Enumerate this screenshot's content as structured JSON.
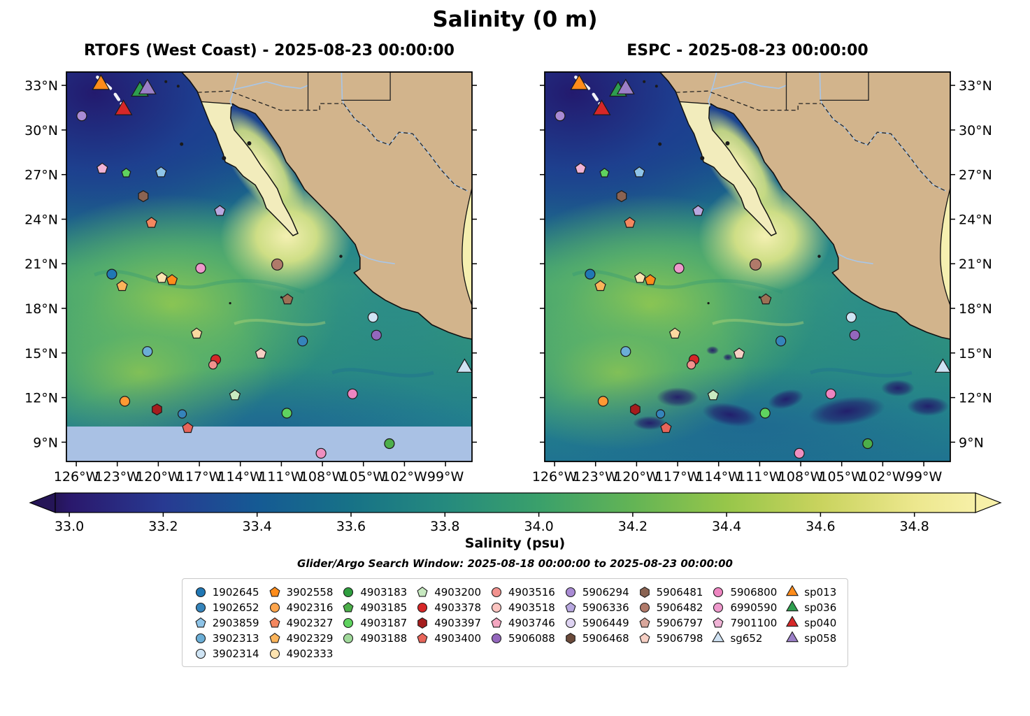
{
  "title": "Salinity (0 m)",
  "panels": [
    {
      "title": "RTOFS (West Coast) - 2025-08-23 00:00:00"
    },
    {
      "title": "ESPC - 2025-08-23 00:00:00"
    }
  ],
  "axes": {
    "lat_tick_labels": [
      "33°N",
      "30°N",
      "27°N",
      "24°N",
      "21°N",
      "18°N",
      "15°N",
      "12°N",
      "9°N"
    ],
    "lat_tick_values": [
      33,
      30,
      27,
      24,
      21,
      18,
      15,
      12,
      9
    ],
    "lon_tick_labels": [
      "126°W",
      "123°W",
      "120°W",
      "117°W",
      "114°W",
      "111°W",
      "108°W",
      "105°W",
      "102°W",
      "99°W"
    ],
    "lon_tick_values": [
      -126,
      -123,
      -120,
      -117,
      -114,
      -111,
      -108,
      -105,
      -102,
      -99
    ],
    "lon_range": [
      -126.72,
      -97.06
    ],
    "lat_range": [
      7.7,
      33.9
    ]
  },
  "colorbar": {
    "label": "Salinity (psu)",
    "tick_labels": [
      "33.0",
      "33.2",
      "33.4",
      "33.6",
      "33.8",
      "34.0",
      "34.2",
      "34.4",
      "34.6",
      "34.8"
    ],
    "tick_values": [
      33.0,
      33.2,
      33.4,
      33.6,
      33.8,
      34.0,
      34.2,
      34.4,
      34.6,
      34.8
    ],
    "value_range": [
      32.97,
      34.93
    ],
    "stops": [
      [
        0,
        "#251557"
      ],
      [
        0.0153,
        "#2a186c"
      ],
      [
        0.1173,
        "#283a92"
      ],
      [
        0.2194,
        "#155a94"
      ],
      [
        0.3214,
        "#177287"
      ],
      [
        0.4235,
        "#258a7e"
      ],
      [
        0.5255,
        "#3aa06b"
      ],
      [
        0.6276,
        "#63b455"
      ],
      [
        0.7296,
        "#97c64a"
      ],
      [
        0.8316,
        "#c9d35e"
      ],
      [
        0.9337,
        "#ece78d"
      ],
      [
        1,
        "#f7f0a8"
      ]
    ]
  },
  "search_window_label": "Glider/Argo Search Window: 2025-08-18 00:00:00 to 2025-08-23 00:00:00",
  "legend": {
    "columns": [
      [
        {
          "label": "1902645",
          "marker": "circle",
          "color": "#2077b4"
        },
        {
          "label": "1902652",
          "marker": "circle",
          "color": "#3584bb"
        },
        {
          "label": "2903859",
          "marker": "pentagon",
          "color": "#8ec4e8"
        },
        {
          "label": "3902313",
          "marker": "circle",
          "color": "#6baed6"
        },
        {
          "label": "3902314",
          "marker": "circle",
          "color": "#cfe4f4"
        }
      ],
      [
        {
          "label": "3902558",
          "marker": "pentagon",
          "color": "#ff8c1a"
        },
        {
          "label": "4902316",
          "marker": "circle",
          "color": "#ffa64d"
        },
        {
          "label": "4902327",
          "marker": "pentagon",
          "color": "#f4875f"
        },
        {
          "label": "4902329",
          "marker": "pentagon",
          "color": "#fbb45a"
        },
        {
          "label": "4902333",
          "marker": "circle",
          "color": "#fde3b0"
        }
      ],
      [
        {
          "label": "4903183",
          "marker": "circle",
          "color": "#2f9e3f"
        },
        {
          "label": "4903185",
          "marker": "pentagon",
          "color": "#4daf4a"
        },
        {
          "label": "4903187",
          "marker": "circle",
          "color": "#5fd35f"
        },
        {
          "label": "4903188",
          "marker": "circle",
          "color": "#a1d99b"
        }
      ],
      [
        {
          "label": "4903200",
          "marker": "pentagon",
          "color": "#c7e9c0"
        },
        {
          "label": "4903378",
          "marker": "circle",
          "color": "#d62728"
        },
        {
          "label": "4903397",
          "marker": "hexagon",
          "color": "#a51d1d"
        },
        {
          "label": "4903400",
          "marker": "pentagon",
          "color": "#e8655a"
        }
      ],
      [
        {
          "label": "4903516",
          "marker": "circle",
          "color": "#f2928e"
        },
        {
          "label": "4903518",
          "marker": "circle",
          "color": "#fbc4c0"
        },
        {
          "label": "4903746",
          "marker": "pentagon",
          "color": "#f4a6c0"
        },
        {
          "label": "5906088",
          "marker": "circle",
          "color": "#9467bd"
        }
      ],
      [
        {
          "label": "5906294",
          "marker": "circle",
          "color": "#a98bd4"
        },
        {
          "label": "5906336",
          "marker": "pentagon",
          "color": "#b8a8e0"
        },
        {
          "label": "5906449",
          "marker": "circle",
          "color": "#ded3f2"
        },
        {
          "label": "5906468",
          "marker": "hexagon",
          "color": "#6b4a3a"
        }
      ],
      [
        {
          "label": "5906481",
          "marker": "hexagon",
          "color": "#8a6352"
        },
        {
          "label": "5906482",
          "marker": "circle",
          "color": "#b07a6a"
        },
        {
          "label": "5906797",
          "marker": "pentagon",
          "color": "#d9a79c"
        },
        {
          "label": "5906798",
          "marker": "pentagon",
          "color": "#f6cfc4"
        }
      ],
      [
        {
          "label": "5906800",
          "marker": "circle",
          "color": "#ee85c1"
        },
        {
          "label": "6990590",
          "marker": "circle",
          "color": "#ee99cc"
        },
        {
          "label": "7901100",
          "marker": "pentagon",
          "color": "#f0b3d6"
        },
        {
          "label": "sg652",
          "marker": "triangle",
          "color": "#cfe2f3"
        }
      ],
      [
        {
          "label": "sp013",
          "marker": "triangle",
          "color": "#ff8c1a"
        },
        {
          "label": "sp036",
          "marker": "triangle",
          "color": "#2e9e4f"
        },
        {
          "label": "sp040",
          "marker": "triangle",
          "color": "#d62728"
        },
        {
          "label": "sp058",
          "marker": "triangle",
          "color": "#9b7fc7"
        }
      ]
    ]
  },
  "chart_data": {
    "type": "map",
    "map_colors": {
      "land": "#d2b48c",
      "peninsula": "#f2ecbc",
      "gulf_of_mexico_sliver": "#f5efb0",
      "rtofs_missing_band": "#a9c1e4",
      "river": "#a8c6e8",
      "coastline": "#111111"
    },
    "rtofs_domain_south_limit_lat": 10.05,
    "glider_tracks": [
      [
        [
          -124.45,
          33.55
        ],
        [
          -123.5,
          32.8
        ]
      ],
      [
        [
          -123.15,
          32.4
        ],
        [
          -122.5,
          31.5
        ]
      ]
    ],
    "markers": [
      {
        "lon": -124.2,
        "lat": 33.05,
        "marker": "triangle",
        "color": "#ff8c1a",
        "r": 11
      },
      {
        "lon": -121.35,
        "lat": 32.6,
        "marker": "triangle",
        "color": "#2e9e4f",
        "r": 11
      },
      {
        "lon": -120.8,
        "lat": 32.75,
        "marker": "triangle",
        "color": "#9b7fc7",
        "r": 11
      },
      {
        "lon": -122.55,
        "lat": 31.35,
        "marker": "triangle",
        "color": "#d62728",
        "r": 11
      },
      {
        "lon": -97.6,
        "lat": 14.0,
        "marker": "triangle",
        "color": "#cfe2f3",
        "r": 10
      },
      {
        "lon": -125.6,
        "lat": 30.95,
        "marker": "circle",
        "color": "#a98bd4",
        "r": 7
      },
      {
        "lon": -124.1,
        "lat": 27.4,
        "marker": "pentagon",
        "color": "#f0b3d6",
        "r": 7
      },
      {
        "lon": -122.35,
        "lat": 27.1,
        "marker": "pentagon",
        "color": "#5fd35f",
        "r": 6
      },
      {
        "lon": -119.8,
        "lat": 27.15,
        "marker": "pentagon",
        "color": "#8ec4e8",
        "r": 7
      },
      {
        "lon": -121.1,
        "lat": 25.55,
        "marker": "hexagon",
        "color": "#8a6352",
        "r": 7
      },
      {
        "lon": -120.5,
        "lat": 23.75,
        "marker": "pentagon",
        "color": "#f4875f",
        "r": 7
      },
      {
        "lon": -115.5,
        "lat": 24.55,
        "marker": "pentagon",
        "color": "#b8a8e0",
        "r": 7
      },
      {
        "lon": -111.3,
        "lat": 20.95,
        "marker": "circle",
        "color": "#b07a6a",
        "r": 8
      },
      {
        "lon": -116.9,
        "lat": 20.7,
        "marker": "circle",
        "color": "#ee99cc",
        "r": 7
      },
      {
        "lon": -123.4,
        "lat": 20.3,
        "marker": "circle",
        "color": "#2077b4",
        "r": 7
      },
      {
        "lon": -119.75,
        "lat": 20.05,
        "marker": "pentagon",
        "color": "#fde3b0",
        "r": 7
      },
      {
        "lon": -119.0,
        "lat": 19.9,
        "marker": "pentagon",
        "color": "#ff8c1a",
        "r": 7
      },
      {
        "lon": -122.65,
        "lat": 19.5,
        "marker": "pentagon",
        "color": "#fbb45a",
        "r": 7
      },
      {
        "lon": -110.55,
        "lat": 18.6,
        "marker": "pentagon",
        "color": "#9c7055",
        "r": 7
      },
      {
        "lon": -104.3,
        "lat": 17.4,
        "marker": "circle",
        "color": "#cfe4f4",
        "r": 7
      },
      {
        "lon": -104.05,
        "lat": 16.2,
        "marker": "circle",
        "color": "#9467bd",
        "r": 7
      },
      {
        "lon": -117.2,
        "lat": 16.3,
        "marker": "pentagon",
        "color": "#fbd9a0",
        "r": 7
      },
      {
        "lon": -120.8,
        "lat": 15.1,
        "marker": "circle",
        "color": "#6baed6",
        "r": 7
      },
      {
        "lon": -112.5,
        "lat": 14.95,
        "marker": "pentagon",
        "color": "#f6cfc4",
        "r": 7
      },
      {
        "lon": -109.45,
        "lat": 15.8,
        "marker": "circle",
        "color": "#3584bb",
        "r": 7
      },
      {
        "lon": -115.8,
        "lat": 14.55,
        "marker": "circle",
        "color": "#d62728",
        "r": 7
      },
      {
        "lon": -116.0,
        "lat": 14.2,
        "marker": "circle",
        "color": "#f2928e",
        "r": 6
      },
      {
        "lon": -122.45,
        "lat": 11.75,
        "marker": "circle",
        "color": "#ff9933",
        "r": 7
      },
      {
        "lon": -120.1,
        "lat": 11.2,
        "marker": "hexagon",
        "color": "#a51d1d",
        "r": 7
      },
      {
        "lon": -118.25,
        "lat": 10.9,
        "marker": "circle",
        "color": "#3584bb",
        "r": 6
      },
      {
        "lon": -114.4,
        "lat": 12.15,
        "marker": "pentagon",
        "color": "#c7e9c0",
        "r": 7
      },
      {
        "lon": -110.6,
        "lat": 10.95,
        "marker": "circle",
        "color": "#5fd35f",
        "r": 7
      },
      {
        "lon": -105.8,
        "lat": 12.25,
        "marker": "circle",
        "color": "#ee85c1",
        "r": 7
      },
      {
        "lon": -117.85,
        "lat": 9.95,
        "marker": "pentagon",
        "color": "#e8655a",
        "r": 7
      },
      {
        "lon": -103.1,
        "lat": 8.9,
        "marker": "circle",
        "color": "#4daf4a",
        "r": 7
      },
      {
        "lon": -108.1,
        "lat": 8.25,
        "marker": "circle",
        "color": "#ef8fc0",
        "r": 7
      }
    ]
  }
}
